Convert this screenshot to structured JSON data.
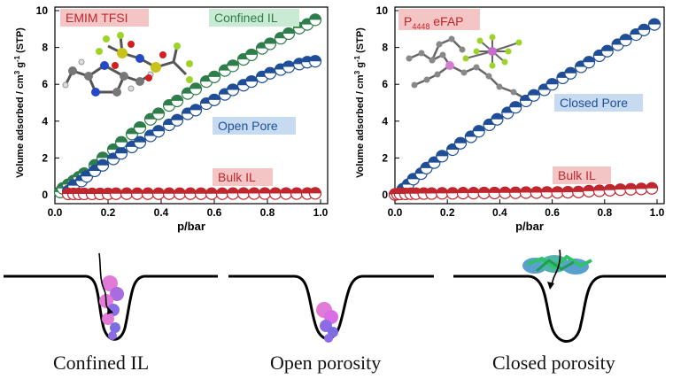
{
  "chart_data": [
    {
      "type": "scatter",
      "title": "",
      "xlabel": "p/bar",
      "ylabel_parts": [
        "Volume adsorbed / cm",
        "3",
        " g",
        "-1",
        " (STP)"
      ],
      "xlim": [
        0,
        1.0
      ],
      "ylim": [
        0,
        10
      ],
      "xticks": [
        "0.0",
        "0.2",
        "0.4",
        "0.6",
        "0.8",
        "1.0"
      ],
      "yticks": [
        "0",
        "2",
        "4",
        "6",
        "8",
        "10"
      ],
      "label_main": "EMIM TFSI",
      "series": [
        {
          "name": "Confined IL",
          "color": "#2e7d4a",
          "x": [
            0.02,
            0.03,
            0.05,
            0.07,
            0.09,
            0.11,
            0.15,
            0.18,
            0.22,
            0.25,
            0.29,
            0.32,
            0.36,
            0.39,
            0.43,
            0.46,
            0.5,
            0.53,
            0.57,
            0.6,
            0.64,
            0.67,
            0.71,
            0.74,
            0.78,
            0.81,
            0.85,
            0.88,
            0.92,
            0.95,
            0.98
          ],
          "y": [
            0.15,
            0.35,
            0.55,
            0.75,
            0.95,
            1.15,
            1.6,
            2.0,
            2.45,
            2.85,
            3.3,
            3.65,
            4.1,
            4.4,
            4.85,
            5.1,
            5.5,
            5.75,
            6.15,
            6.4,
            6.75,
            7.0,
            7.35,
            7.6,
            7.95,
            8.2,
            8.5,
            8.75,
            9.05,
            9.25,
            9.5
          ]
        },
        {
          "name": "Open Pore",
          "color": "#1f4e97",
          "x": [
            0.05,
            0.07,
            0.1,
            0.12,
            0.15,
            0.18,
            0.22,
            0.25,
            0.29,
            0.32,
            0.36,
            0.39,
            0.43,
            0.46,
            0.5,
            0.53,
            0.57,
            0.6,
            0.64,
            0.67,
            0.71,
            0.74,
            0.78,
            0.81,
            0.85,
            0.88,
            0.92,
            0.95,
            0.98
          ],
          "y": [
            0.2,
            0.5,
            0.75,
            1.0,
            1.3,
            1.6,
            1.95,
            2.25,
            2.6,
            2.85,
            3.2,
            3.45,
            3.8,
            4.05,
            4.4,
            4.6,
            4.95,
            5.15,
            5.45,
            5.7,
            5.95,
            6.15,
            6.4,
            6.6,
            6.8,
            6.95,
            7.1,
            7.2,
            7.25
          ]
        },
        {
          "name": "Bulk IL",
          "color": "#c0262d",
          "x": [
            0.05,
            0.07,
            0.09,
            0.11,
            0.14,
            0.17,
            0.2,
            0.23,
            0.27,
            0.31,
            0.35,
            0.39,
            0.43,
            0.47,
            0.51,
            0.55,
            0.59,
            0.63,
            0.67,
            0.71,
            0.75,
            0.79,
            0.83,
            0.87,
            0.91,
            0.95,
            0.98
          ],
          "y": [
            0.05,
            0.05,
            0.05,
            0.05,
            0.05,
            0.05,
            0.05,
            0.06,
            0.06,
            0.06,
            0.06,
            0.06,
            0.06,
            0.06,
            0.06,
            0.06,
            0.06,
            0.06,
            0.07,
            0.07,
            0.07,
            0.07,
            0.07,
            0.07,
            0.07,
            0.07,
            0.08
          ]
        }
      ]
    },
    {
      "type": "scatter",
      "title": "",
      "xlabel": "p/bar",
      "ylabel_parts": [
        "Volume adsorbed / cm",
        "3",
        " g",
        "-1",
        " (STP)"
      ],
      "xlim": [
        0,
        1.0
      ],
      "ylim": [
        0,
        10
      ],
      "xticks": [
        "0.0",
        "0.2",
        "0.4",
        "0.6",
        "0.8",
        "1.0"
      ],
      "yticks": [
        "0",
        "2",
        "4",
        "6",
        "8",
        "10"
      ],
      "label_main": "P",
      "label_sub": "4448",
      "label_rest": " eFAP",
      "series": [
        {
          "name": "Closed Pore",
          "color": "#1f4e97",
          "x": [
            0.03,
            0.05,
            0.07,
            0.1,
            0.12,
            0.15,
            0.18,
            0.22,
            0.25,
            0.29,
            0.32,
            0.36,
            0.39,
            0.43,
            0.46,
            0.5,
            0.53,
            0.57,
            0.6,
            0.64,
            0.67,
            0.71,
            0.74,
            0.78,
            0.81,
            0.85,
            0.88,
            0.92,
            0.95,
            0.99
          ],
          "y": [
            0.3,
            0.55,
            0.85,
            1.15,
            1.45,
            1.75,
            2.1,
            2.45,
            2.8,
            3.15,
            3.45,
            3.8,
            4.1,
            4.45,
            4.75,
            5.1,
            5.4,
            5.7,
            6.0,
            6.35,
            6.6,
            6.95,
            7.2,
            7.55,
            7.8,
            8.15,
            8.4,
            8.7,
            8.95,
            9.25
          ]
        },
        {
          "name": "Bulk IL",
          "color": "#c0262d",
          "x": [
            0.0,
            0.01,
            0.02,
            0.04,
            0.06,
            0.08,
            0.11,
            0.14,
            0.18,
            0.22,
            0.26,
            0.3,
            0.34,
            0.38,
            0.42,
            0.46,
            0.5,
            0.54,
            0.58,
            0.62,
            0.66,
            0.7,
            0.74,
            0.78,
            0.82,
            0.86,
            0.9,
            0.94,
            0.98
          ],
          "y": [
            0.02,
            0.04,
            0.05,
            0.05,
            0.06,
            0.06,
            0.07,
            0.07,
            0.08,
            0.08,
            0.09,
            0.09,
            0.1,
            0.1,
            0.11,
            0.11,
            0.12,
            0.12,
            0.13,
            0.13,
            0.14,
            0.15,
            0.2,
            0.22,
            0.25,
            0.28,
            0.3,
            0.32,
            0.35
          ]
        }
      ]
    }
  ],
  "schematic": {
    "captions": [
      "Confined IL",
      "Open porosity",
      "Closed porosity"
    ]
  }
}
